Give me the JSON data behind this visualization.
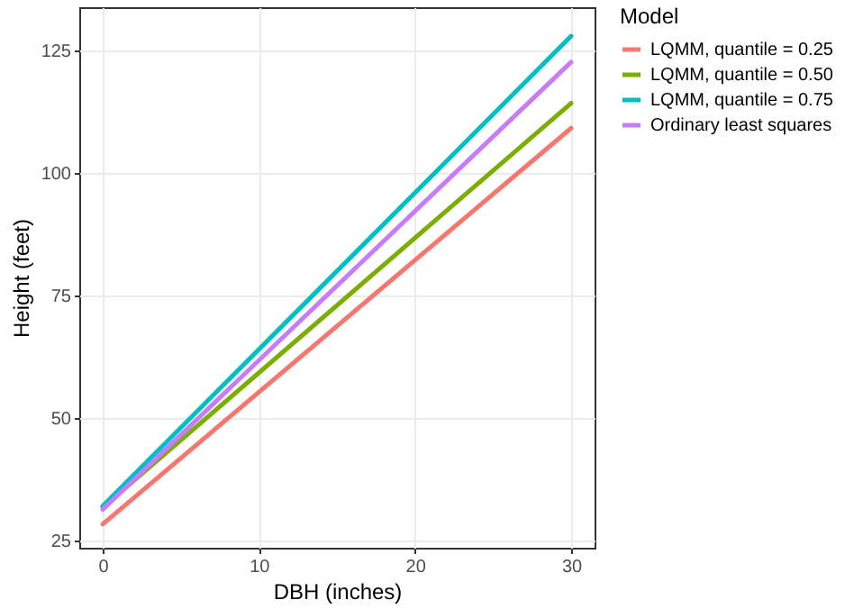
{
  "chart_data": {
    "type": "line",
    "xlabel": "DBH (inches)",
    "ylabel": "Height (feet)",
    "legend_title": "Model",
    "legend": "right",
    "x": [
      0,
      30
    ],
    "series": [
      {
        "name": "LQMM, quantile = 0.25",
        "color": "#f8766d",
        "values": [
          28.3,
          109.2
        ]
      },
      {
        "name": "LQMM, quantile = 0.50",
        "color": "#7cae00",
        "values": [
          31.7,
          114.3
        ]
      },
      {
        "name": "LQMM, quantile = 0.75",
        "color": "#00bfc4",
        "values": [
          32.0,
          128.0
        ]
      },
      {
        "name": "Ordinary least squares",
        "color": "#c77cff",
        "values": [
          31.3,
          122.7
        ]
      }
    ],
    "xlim": [
      -1.5,
      31.5
    ],
    "xticks": [
      0,
      10,
      20,
      30
    ],
    "ylim": [
      23.5,
      133.9
    ],
    "yticks": [
      25,
      50,
      75,
      100,
      125
    ],
    "grid": true,
    "line_style": "solid",
    "marker": "none"
  }
}
